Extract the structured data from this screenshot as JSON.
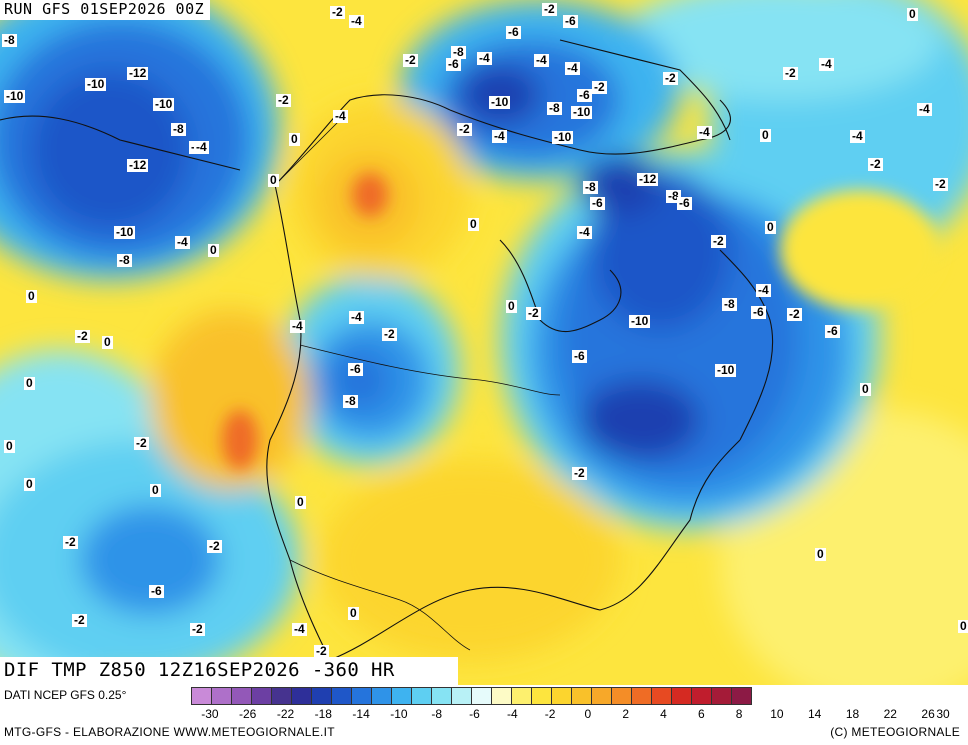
{
  "header": {
    "run_label": "RUN GFS 01SEP2026 00Z",
    "field_label": "DIF TMP Z850 12Z16SEP2026 -360 HR"
  },
  "footer": {
    "source": "DATI NCEP GFS 0.25°",
    "credit_left": "MTG-GFS - ELABORAZIONE WWW.METEOGIORNALE.IT",
    "credit_right": "(C) METEOGIORNALE"
  },
  "legend": {
    "colors": [
      "#c98ad8",
      "#ae70c9",
      "#9358b8",
      "#6c3fa3",
      "#46338f",
      "#2e2f99",
      "#1f3fb0",
      "#1f57c8",
      "#2574dc",
      "#2f93e8",
      "#3eb3f0",
      "#5ecff2",
      "#86e3f3",
      "#b8f1f6",
      "#e6fbfb",
      "#fdfbc6",
      "#fdf06e",
      "#fde53e",
      "#fcd52e",
      "#f9c12a",
      "#f7a829",
      "#f48d27",
      "#ef6c25",
      "#e74a22",
      "#d52a22",
      "#c01d2d",
      "#a41b38",
      "#8c1a45"
    ],
    "tick_labels": [
      "-30",
      "-26",
      "-22",
      "-18",
      "-14",
      "-10",
      "-8",
      "-6",
      "-4",
      "-2",
      "0",
      "2",
      "4",
      "6",
      "8",
      "10",
      "14",
      "18",
      "22",
      "26",
      "30"
    ]
  },
  "map": {
    "contour_labels": [
      "-2",
      "-4",
      "-2",
      "-6",
      "0",
      "-8",
      "-6",
      "-4",
      "-2",
      "-4",
      "-2",
      "-12",
      "-10",
      "-8",
      "-10",
      "-4",
      "-6",
      "-4",
      "-2",
      "-10",
      "-10",
      "-8",
      "-2",
      "-2",
      "-4",
      "-4",
      "-10",
      "-4",
      "-12",
      "-8",
      "-6",
      "-8",
      "-2",
      "-4",
      "0",
      "-8",
      "-4",
      "-6",
      "-10",
      "0",
      "-2",
      "-2",
      "-4",
      "-4",
      "-6",
      "-10",
      "-10",
      "-8",
      "-8",
      "-6",
      "-4",
      "-6",
      "-4",
      "-2",
      "-4",
      "-2",
      "-4",
      "-6",
      "-8",
      "-6",
      "-2",
      "-2",
      "-10",
      "-12",
      "0",
      "0",
      "0",
      "-4",
      "0",
      "0",
      "0",
      "0",
      "0",
      "0",
      "0",
      "0",
      "0",
      "-2",
      "0",
      "-2",
      "-2",
      "-2",
      "-6",
      "-2",
      "-2",
      "-2",
      "-4",
      "0",
      "-2",
      "0",
      "0"
    ]
  }
}
